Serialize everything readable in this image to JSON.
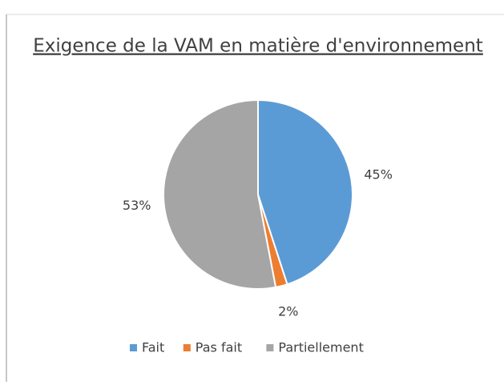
{
  "chart_data": {
    "type": "pie",
    "title": "Exigence de la VAM en matière d'environnement",
    "categories": [
      "Fait",
      "Pas fait",
      "Partiellement"
    ],
    "values": [
      45,
      2,
      53
    ],
    "value_labels": [
      "45%",
      "2%",
      "53%"
    ],
    "colors": [
      "#5b9bd5",
      "#ed7d31",
      "#a5a5a5"
    ],
    "legend": "bottom"
  }
}
